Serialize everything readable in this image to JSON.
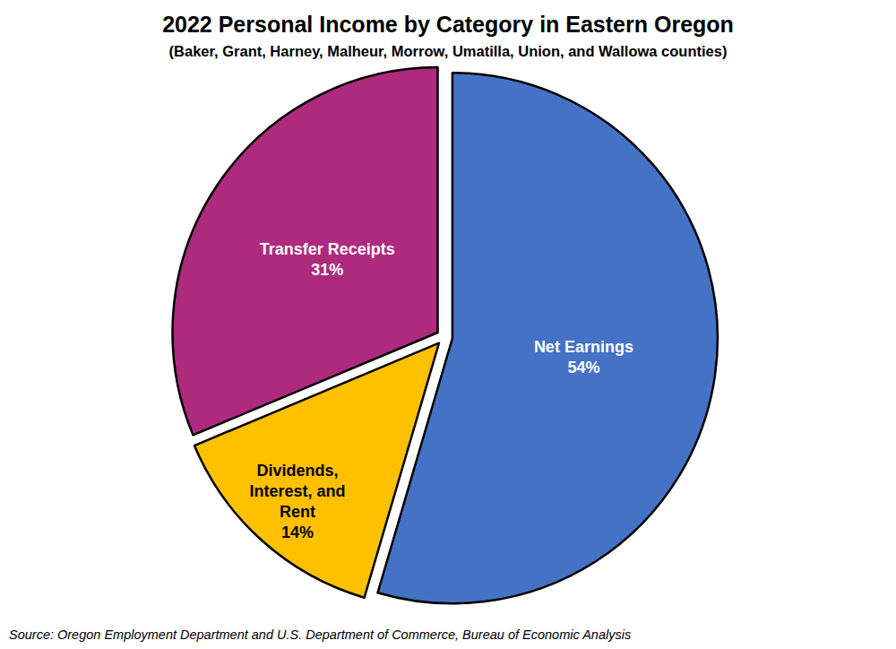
{
  "chart_data": {
    "type": "pie",
    "title": "2022 Personal Income by Category in Eastern Oregon",
    "subtitle": "(Baker, Grant, Harney, Malheur, Morrow, Umatilla, Union, and Wallowa counties)",
    "source": "Source: Oregon Employment Department and U.S. Department of Commerce, Bureau of Economic Analysis",
    "categories": [
      "Net Earnings",
      "Dividends, Interest, and Rent",
      "Transfer Receipts"
    ],
    "values": [
      54,
      14,
      31
    ],
    "value_labels": [
      "54%",
      "14%",
      "31%"
    ],
    "colors": [
      "#4472c4",
      "#ffc000",
      "#ad2a7d"
    ],
    "data_labels": true
  }
}
